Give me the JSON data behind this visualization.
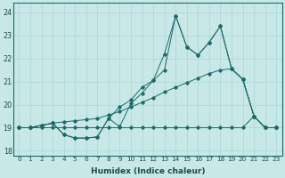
{
  "xlabel": "Humidex (Indice chaleur)",
  "xlim": [
    -0.5,
    23.5
  ],
  "ylim": [
    17.8,
    24.4
  ],
  "yticks": [
    18,
    19,
    20,
    21,
    22,
    23,
    24
  ],
  "xticks": [
    0,
    1,
    2,
    3,
    4,
    5,
    6,
    7,
    8,
    9,
    10,
    11,
    12,
    13,
    14,
    15,
    16,
    17,
    18,
    19,
    20,
    21,
    22,
    23
  ],
  "bg_color": "#c8e8e8",
  "line_color": "#1a6b6b",
  "grid_color": "#aad4d4",
  "s1": [
    19.0,
    19.0,
    19.1,
    19.2,
    18.7,
    18.55,
    18.55,
    18.6,
    19.4,
    19.05,
    20.05,
    20.5,
    21.05,
    21.5,
    23.85,
    22.5,
    22.15,
    22.7,
    23.4,
    21.55,
    21.1,
    19.5,
    19.0,
    19.0
  ],
  "s2": [
    19.0,
    19.0,
    19.1,
    19.2,
    18.7,
    18.55,
    18.55,
    18.6,
    19.4,
    19.9,
    20.2,
    20.75,
    21.05,
    22.2,
    23.85,
    22.5,
    22.15,
    22.7,
    23.4,
    21.55,
    21.1,
    19.5,
    19.0,
    19.0
  ],
  "s3": [
    19.0,
    19.0,
    19.1,
    19.2,
    19.25,
    19.3,
    19.35,
    19.4,
    19.55,
    19.7,
    19.9,
    20.1,
    20.3,
    20.55,
    20.75,
    20.95,
    21.15,
    21.35,
    21.5,
    21.55,
    21.1,
    19.5,
    19.0,
    19.0
  ],
  "s4": [
    19.0,
    19.0,
    19.0,
    19.0,
    19.0,
    19.0,
    19.0,
    19.0,
    19.0,
    19.0,
    19.0,
    19.0,
    19.0,
    19.0,
    19.0,
    19.0,
    19.0,
    19.0,
    19.0,
    19.0,
    19.0,
    19.5,
    19.0,
    19.0
  ]
}
